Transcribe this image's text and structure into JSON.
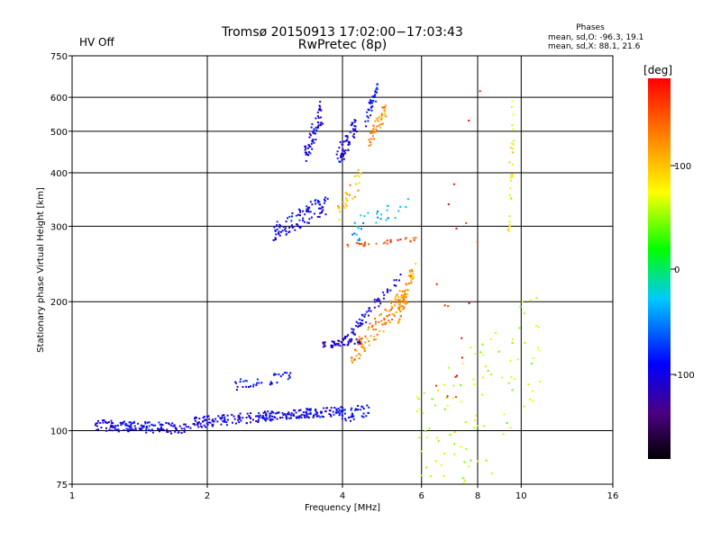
{
  "header": {
    "title_line1": "Tromsø 20150913 17:02:00−17:03:43",
    "title_line2": "RwPretec (8p)",
    "hv_status": "HV Off",
    "hv_color": "#d40000"
  },
  "phases_box": {
    "title": "Phases",
    "line_o": "mean, sd,O: -96.3, 19.1",
    "line_x": "mean, sd,X:  88.1, 21.6"
  },
  "colorbar": {
    "label": "deg",
    "ticks": [
      "100",
      "0",
      "-100"
    ],
    "range": [
      -180,
      180
    ]
  },
  "chart_data": {
    "type": "scatter",
    "xlabel": "Frequency [MHz]",
    "ylabel": "Stationary phase Virtual Height [km]",
    "x_scale": "log2",
    "y_scale": "log",
    "xlim": [
      1,
      16
    ],
    "ylim": [
      75,
      750
    ],
    "x_ticks": [
      1,
      2,
      4,
      6,
      8,
      10,
      16
    ],
    "y_ticks": [
      75,
      100,
      200,
      300,
      400,
      500,
      600,
      750
    ],
    "x_gridlines": [
      2,
      4,
      6,
      8,
      10
    ],
    "y_gridlines": [
      100,
      200,
      300,
      400,
      500,
      600
    ],
    "color_by": "phase_deg",
    "traces": [
      {
        "f": [
          1.13,
          1.8
        ],
        "h": [
          103,
          101
        ],
        "phase": -100,
        "n": 140,
        "spread": 0.025
      },
      {
        "f": [
          1.8,
          2.7
        ],
        "h": [
          104,
          108
        ],
        "phase": -105,
        "n": 110,
        "spread": 0.025
      },
      {
        "f": [
          2.7,
          4.0
        ],
        "h": [
          108,
          111
        ],
        "phase": -100,
        "n": 130,
        "spread": 0.022
      },
      {
        "f": [
          4.0,
          4.6
        ],
        "h": [
          108,
          112
        ],
        "phase": -90,
        "n": 40,
        "spread": 0.03
      },
      {
        "f": [
          2.3,
          3.1
        ],
        "h": [
          128,
          134
        ],
        "phase": -90,
        "n": 40,
        "spread": 0.025
      },
      {
        "f": [
          3.6,
          4.4
        ],
        "h": [
          158,
          162
        ],
        "phase": -110,
        "n": 50,
        "spread": 0.015
      },
      {
        "f": [
          4.0,
          5.4
        ],
        "h": [
          160,
          230
        ],
        "phase": -100,
        "n": 60,
        "spread": 0.025
      },
      {
        "f": [
          4.2,
          5.6
        ],
        "h": [
          150,
          210
        ],
        "phase": 120,
        "n": 110,
        "spread": 0.05
      },
      {
        "f": [
          5.3,
          5.8
        ],
        "h": [
          180,
          250
        ],
        "phase": 115,
        "n": 50,
        "spread": 0.05
      },
      {
        "f": [
          2.8,
          3.7
        ],
        "h": [
          290,
          340
        ],
        "phase": -95,
        "n": 100,
        "spread": 0.05
      },
      {
        "f": [
          3.3,
          3.6
        ],
        "h": [
          440,
          560
        ],
        "phase": -100,
        "n": 60,
        "spread": 0.06
      },
      {
        "f": [
          3.9,
          4.3
        ],
        "h": [
          430,
          520
        ],
        "phase": -100,
        "n": 60,
        "spread": 0.05
      },
      {
        "f": [
          4.5,
          4.8
        ],
        "h": [
          520,
          640
        ],
        "phase": -90,
        "n": 40,
        "spread": 0.04
      },
      {
        "f": [
          4.6,
          5.0
        ],
        "h": [
          480,
          560
        ],
        "phase": 115,
        "n": 45,
        "spread": 0.04
      },
      {
        "f": [
          4.0,
          5.8
        ],
        "h": [
          270,
          280
        ],
        "phase": 150,
        "n": 30,
        "spread": 0.01
      },
      {
        "f": [
          3.9,
          4.4
        ],
        "h": [
          320,
          390
        ],
        "phase": 110,
        "n": 30,
        "spread": 0.05
      },
      {
        "f": [
          4.2,
          5.6
        ],
        "h": [
          290,
          330
        ],
        "phase": -40,
        "n": 30,
        "spread": 0.06
      },
      {
        "f": [
          5.8,
          11.0
        ],
        "h": [
          80,
          150
        ],
        "phase": 60,
        "n": 120,
        "spread": 0.35
      },
      {
        "f": [
          9.4,
          9.6
        ],
        "h": [
          300,
          560
        ],
        "phase": 80,
        "n": 30,
        "spread": 0.1
      },
      {
        "f": [
          6.0,
          9.0
        ],
        "h": [
          85,
          620
        ],
        "phase": 170,
        "n": 20,
        "spread": 0.6
      }
    ]
  }
}
